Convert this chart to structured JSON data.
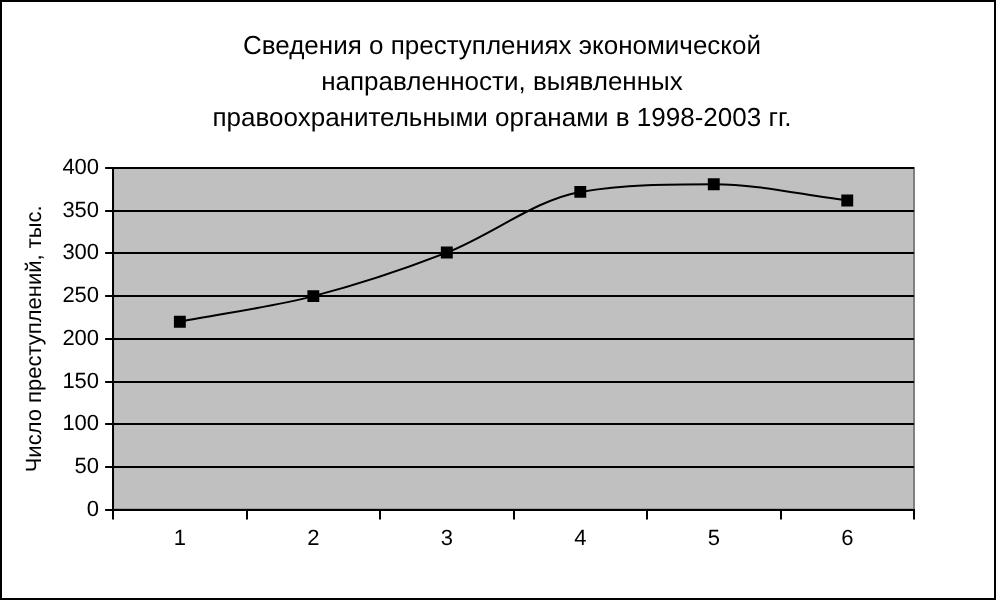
{
  "chart_data": {
    "type": "line",
    "title": "Сведения о преступлениях экономической направленности, выявленных правоохранительными органами в 1998-2003 гг.",
    "ylabel": "Число преступлений, тыс.",
    "categories": [
      "1",
      "2",
      "3",
      "4",
      "5",
      "6"
    ],
    "series": [
      {
        "color": "#000000",
        "values": [
          220,
          250,
          301,
          372,
          381,
          362
        ]
      }
    ],
    "ylim": [
      0,
      400
    ],
    "yticks": [
      0,
      50,
      100,
      150,
      200,
      250,
      300,
      350,
      400
    ],
    "grid": "y",
    "legend": false,
    "marker": "square",
    "line_style": "solid"
  }
}
